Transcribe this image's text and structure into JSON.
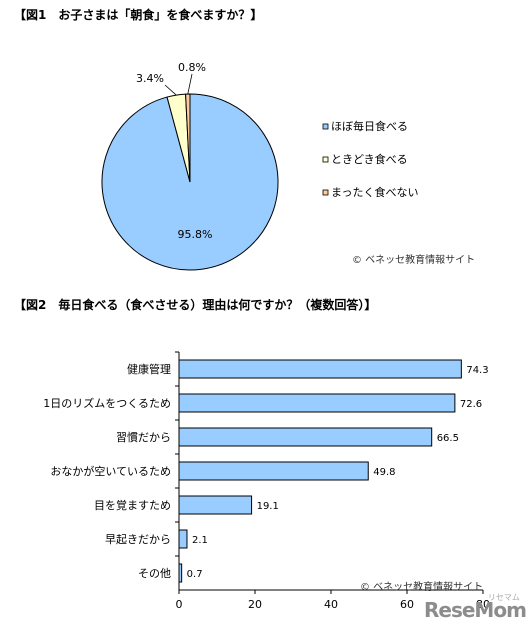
{
  "chart_data": [
    {
      "type": "pie",
      "title": "【図1　お子さまは「朝食」を食べますか？】",
      "categories": [
        "ほぼ毎日食べる",
        "ときどき食べる",
        "まったく食べない"
      ],
      "values": [
        95.8,
        3.4,
        0.8
      ],
      "value_labels": [
        "95.8%",
        "3.4%",
        "0.8%"
      ],
      "legend_placement": "right",
      "colors": [
        "#99ccff",
        "#ffffcc",
        "#ffcc99"
      ],
      "credit": "© ベネッセ教育情報サイト"
    },
    {
      "type": "bar",
      "orientation": "horizontal",
      "title": "【図2　毎日食べる（食べさせる）理由は何ですか？（複数回答）】",
      "categories": [
        "健康管理",
        "1日のリズムをつくるため",
        "習慣だから",
        "おなかが空いているため",
        "目を覚ますため",
        "早起きだから",
        "その他"
      ],
      "values": [
        74.3,
        72.6,
        66.5,
        49.8,
        19.1,
        2.1,
        0.7
      ],
      "value_labels": [
        "74.3",
        "72.6",
        "66.5",
        "49.8",
        "19.1",
        "2.1",
        "0.7"
      ],
      "xlim": [
        0,
        80
      ],
      "x_ticks": [
        "0",
        "20",
        "40",
        "60",
        "80"
      ],
      "grid": false,
      "color": "#99ccff",
      "credit": "© ベネッセ教育情報サイト"
    }
  ],
  "logo": {
    "text": "ReseMom",
    "sub": "リセマム"
  }
}
